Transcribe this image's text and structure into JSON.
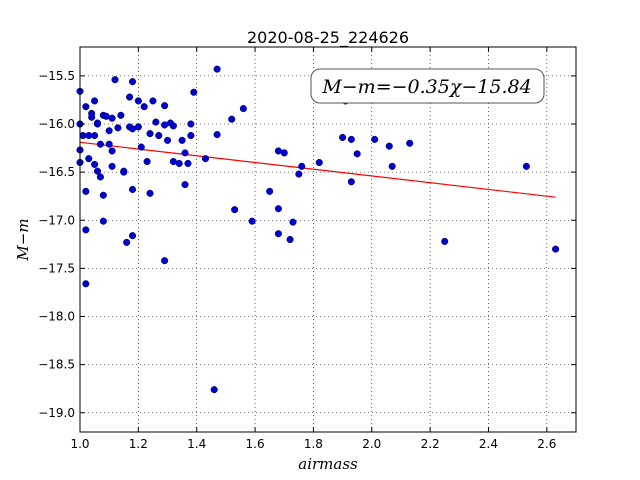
{
  "chart_data": {
    "type": "scatter",
    "title": "2020-08-25_224626",
    "xlabel": "airmass",
    "ylabel": "M−m",
    "annotation": "M−m=−0.35χ−15.84",
    "xlim": [
      1.0,
      2.7
    ],
    "ylim": [
      -19.2,
      -15.2
    ],
    "y_inverted": true,
    "grid": true,
    "x_ticks": [
      1.0,
      1.2,
      1.4,
      1.6,
      1.8,
      2.0,
      2.2,
      2.4,
      2.6
    ],
    "x_tick_labels": [
      "1.0",
      "1.2",
      "1.4",
      "1.6",
      "1.8",
      "2.0",
      "2.2",
      "2.4",
      "2.6"
    ],
    "y_ticks": [
      -15.5,
      -16.0,
      -16.5,
      -17.0,
      -17.5,
      -18.0,
      -18.5,
      -19.0
    ],
    "y_tick_labels": [
      "−15.5",
      "−16.0",
      "−16.5",
      "−17.0",
      "−17.5",
      "−18.0",
      "−18.5",
      "−19.0"
    ],
    "fit": {
      "slope": -0.35,
      "intercept": -15.84,
      "x_range": [
        1.0,
        2.63
      ],
      "color": "#ff0000"
    },
    "point_color": "#0000cc",
    "points": [
      [
        1.0,
        -15.66
      ],
      [
        1.0,
        -16.0
      ],
      [
        1.0,
        -16.4
      ],
      [
        1.0,
        -16.27
      ],
      [
        1.01,
        -16.12
      ],
      [
        1.02,
        -15.82
      ],
      [
        1.02,
        -16.7
      ],
      [
        1.02,
        -17.1
      ],
      [
        1.02,
        -17.66
      ],
      [
        1.03,
        -16.12
      ],
      [
        1.03,
        -16.36
      ],
      [
        1.04,
        -15.89
      ],
      [
        1.04,
        -15.93
      ],
      [
        1.05,
        -16.42
      ],
      [
        1.05,
        -16.12
      ],
      [
        1.05,
        -15.76
      ],
      [
        1.06,
        -15.99
      ],
      [
        1.06,
        -16.0
      ],
      [
        1.06,
        -16.49
      ],
      [
        1.07,
        -16.21
      ],
      [
        1.07,
        -16.55
      ],
      [
        1.08,
        -15.91
      ],
      [
        1.08,
        -16.74
      ],
      [
        1.08,
        -17.01
      ],
      [
        1.09,
        -15.92
      ],
      [
        1.1,
        -16.07
      ],
      [
        1.1,
        -16.21
      ],
      [
        1.11,
        -16.28
      ],
      [
        1.11,
        -15.94
      ],
      [
        1.11,
        -16.44
      ],
      [
        1.12,
        -15.54
      ],
      [
        1.13,
        -16.04
      ],
      [
        1.14,
        -15.91
      ],
      [
        1.15,
        -16.49
      ],
      [
        1.15,
        -16.5
      ],
      [
        1.16,
        -17.23
      ],
      [
        1.17,
        -16.03
      ],
      [
        1.17,
        -15.72
      ],
      [
        1.18,
        -15.56
      ],
      [
        1.18,
        -16.05
      ],
      [
        1.18,
        -16.68
      ],
      [
        1.18,
        -17.16
      ],
      [
        1.2,
        -16.03
      ],
      [
        1.2,
        -15.76
      ],
      [
        1.21,
        -16.24
      ],
      [
        1.22,
        -15.82
      ],
      [
        1.23,
        -16.39
      ],
      [
        1.24,
        -16.1
      ],
      [
        1.24,
        -16.72
      ],
      [
        1.25,
        -15.76
      ],
      [
        1.26,
        -15.98
      ],
      [
        1.27,
        -16.12
      ],
      [
        1.29,
        -16.01
      ],
      [
        1.29,
        -15.81
      ],
      [
        1.29,
        -17.42
      ],
      [
        1.3,
        -16.17
      ],
      [
        1.31,
        -15.99
      ],
      [
        1.32,
        -16.39
      ],
      [
        1.32,
        -16.02
      ],
      [
        1.34,
        -16.41
      ],
      [
        1.35,
        -16.17
      ],
      [
        1.36,
        -16.3
      ],
      [
        1.36,
        -16.63
      ],
      [
        1.37,
        -16.41
      ],
      [
        1.38,
        -16.0
      ],
      [
        1.38,
        -16.12
      ],
      [
        1.39,
        -15.67
      ],
      [
        1.43,
        -16.36
      ],
      [
        1.46,
        -18.76
      ],
      [
        1.47,
        -15.43
      ],
      [
        1.47,
        -16.11
      ],
      [
        1.52,
        -15.95
      ],
      [
        1.53,
        -16.89
      ],
      [
        1.56,
        -15.84
      ],
      [
        1.59,
        -17.01
      ],
      [
        1.65,
        -16.7
      ],
      [
        1.68,
        -16.88
      ],
      [
        1.68,
        -17.14
      ],
      [
        1.68,
        -16.28
      ],
      [
        1.7,
        -16.3
      ],
      [
        1.72,
        -17.2
      ],
      [
        1.73,
        -17.02
      ],
      [
        1.75,
        -16.52
      ],
      [
        1.76,
        -16.44
      ],
      [
        1.82,
        -16.4
      ],
      [
        1.9,
        -16.14
      ],
      [
        1.91,
        -15.76
      ],
      [
        1.93,
        -16.6
      ],
      [
        1.93,
        -16.16
      ],
      [
        1.95,
        -16.31
      ],
      [
        2.01,
        -16.16
      ],
      [
        2.06,
        -16.23
      ],
      [
        2.07,
        -16.44
      ],
      [
        2.13,
        -16.2
      ],
      [
        2.25,
        -17.22
      ],
      [
        2.53,
        -16.44
      ],
      [
        2.63,
        -17.3
      ]
    ]
  }
}
